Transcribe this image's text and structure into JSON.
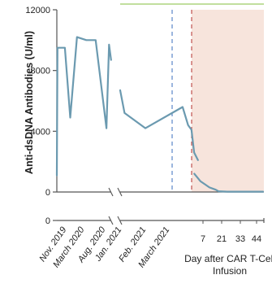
{
  "chart_data": {
    "type": "line",
    "ylabel": "Anti-dsDNA Antibodies (U/ml)",
    "ylim": [
      0,
      12000
    ],
    "yticks": [
      "0",
      "4000",
      "8000",
      "12000"
    ],
    "x_date_labels": [
      "Nov. 2019",
      "March 2020",
      "Aug. 2020",
      "Jan. 2021",
      "Feb. 2021",
      "March 2021"
    ],
    "x_day_labels": [
      "7",
      "21",
      "33",
      "44"
    ],
    "x_day_title_line1": "Day after CAR T-Cell",
    "x_day_title_line2": "Infusion",
    "colors": {
      "series": "#6b9ab0",
      "shade": "#f7e4dc",
      "blue_dash": "#5b86c7",
      "red_dash": "#c0504d",
      "axis": "#555555",
      "top_green": "#9ccc65"
    },
    "series": [
      {
        "segments": [
          {
            "panel": "pre",
            "points": [
              [
                0,
                1100
              ],
              [
                0.05,
                9500
              ],
              [
                0.6,
                9500
              ],
              [
                1.0,
                4900
              ],
              [
                1.5,
                10200
              ],
              [
                2.2,
                10000
              ],
              [
                2.9,
                10000
              ],
              [
                3.7,
                4200
              ],
              [
                3.9,
                9700
              ],
              [
                4.05,
                8700
              ]
            ]
          },
          {
            "panel": "mid",
            "points": [
              [
                0.0,
                6700
              ],
              [
                0.4,
                5200
              ],
              [
                2.3,
                4200
              ],
              [
                5.7,
                5600
              ],
              [
                6.2,
                4400
              ],
              [
                6.5,
                4100
              ],
              [
                6.75,
                2600
              ],
              [
                7.1,
                2100
              ]
            ]
          },
          {
            "panel": "post",
            "points": [
              [
                0.3,
                1200
              ],
              [
                1.0,
                700
              ],
              [
                2.0,
                300
              ],
              [
                2.7,
                150
              ],
              [
                3.0,
                50
              ],
              [
                4.0,
                20
              ],
              [
                6.0,
                20
              ],
              [
                8.0,
                20
              ]
            ]
          }
        ]
      }
    ],
    "markers": [
      {
        "kind": "vertical-dashed",
        "color": "blue"
      },
      {
        "kind": "vertical-dashed",
        "color": "red"
      }
    ]
  }
}
